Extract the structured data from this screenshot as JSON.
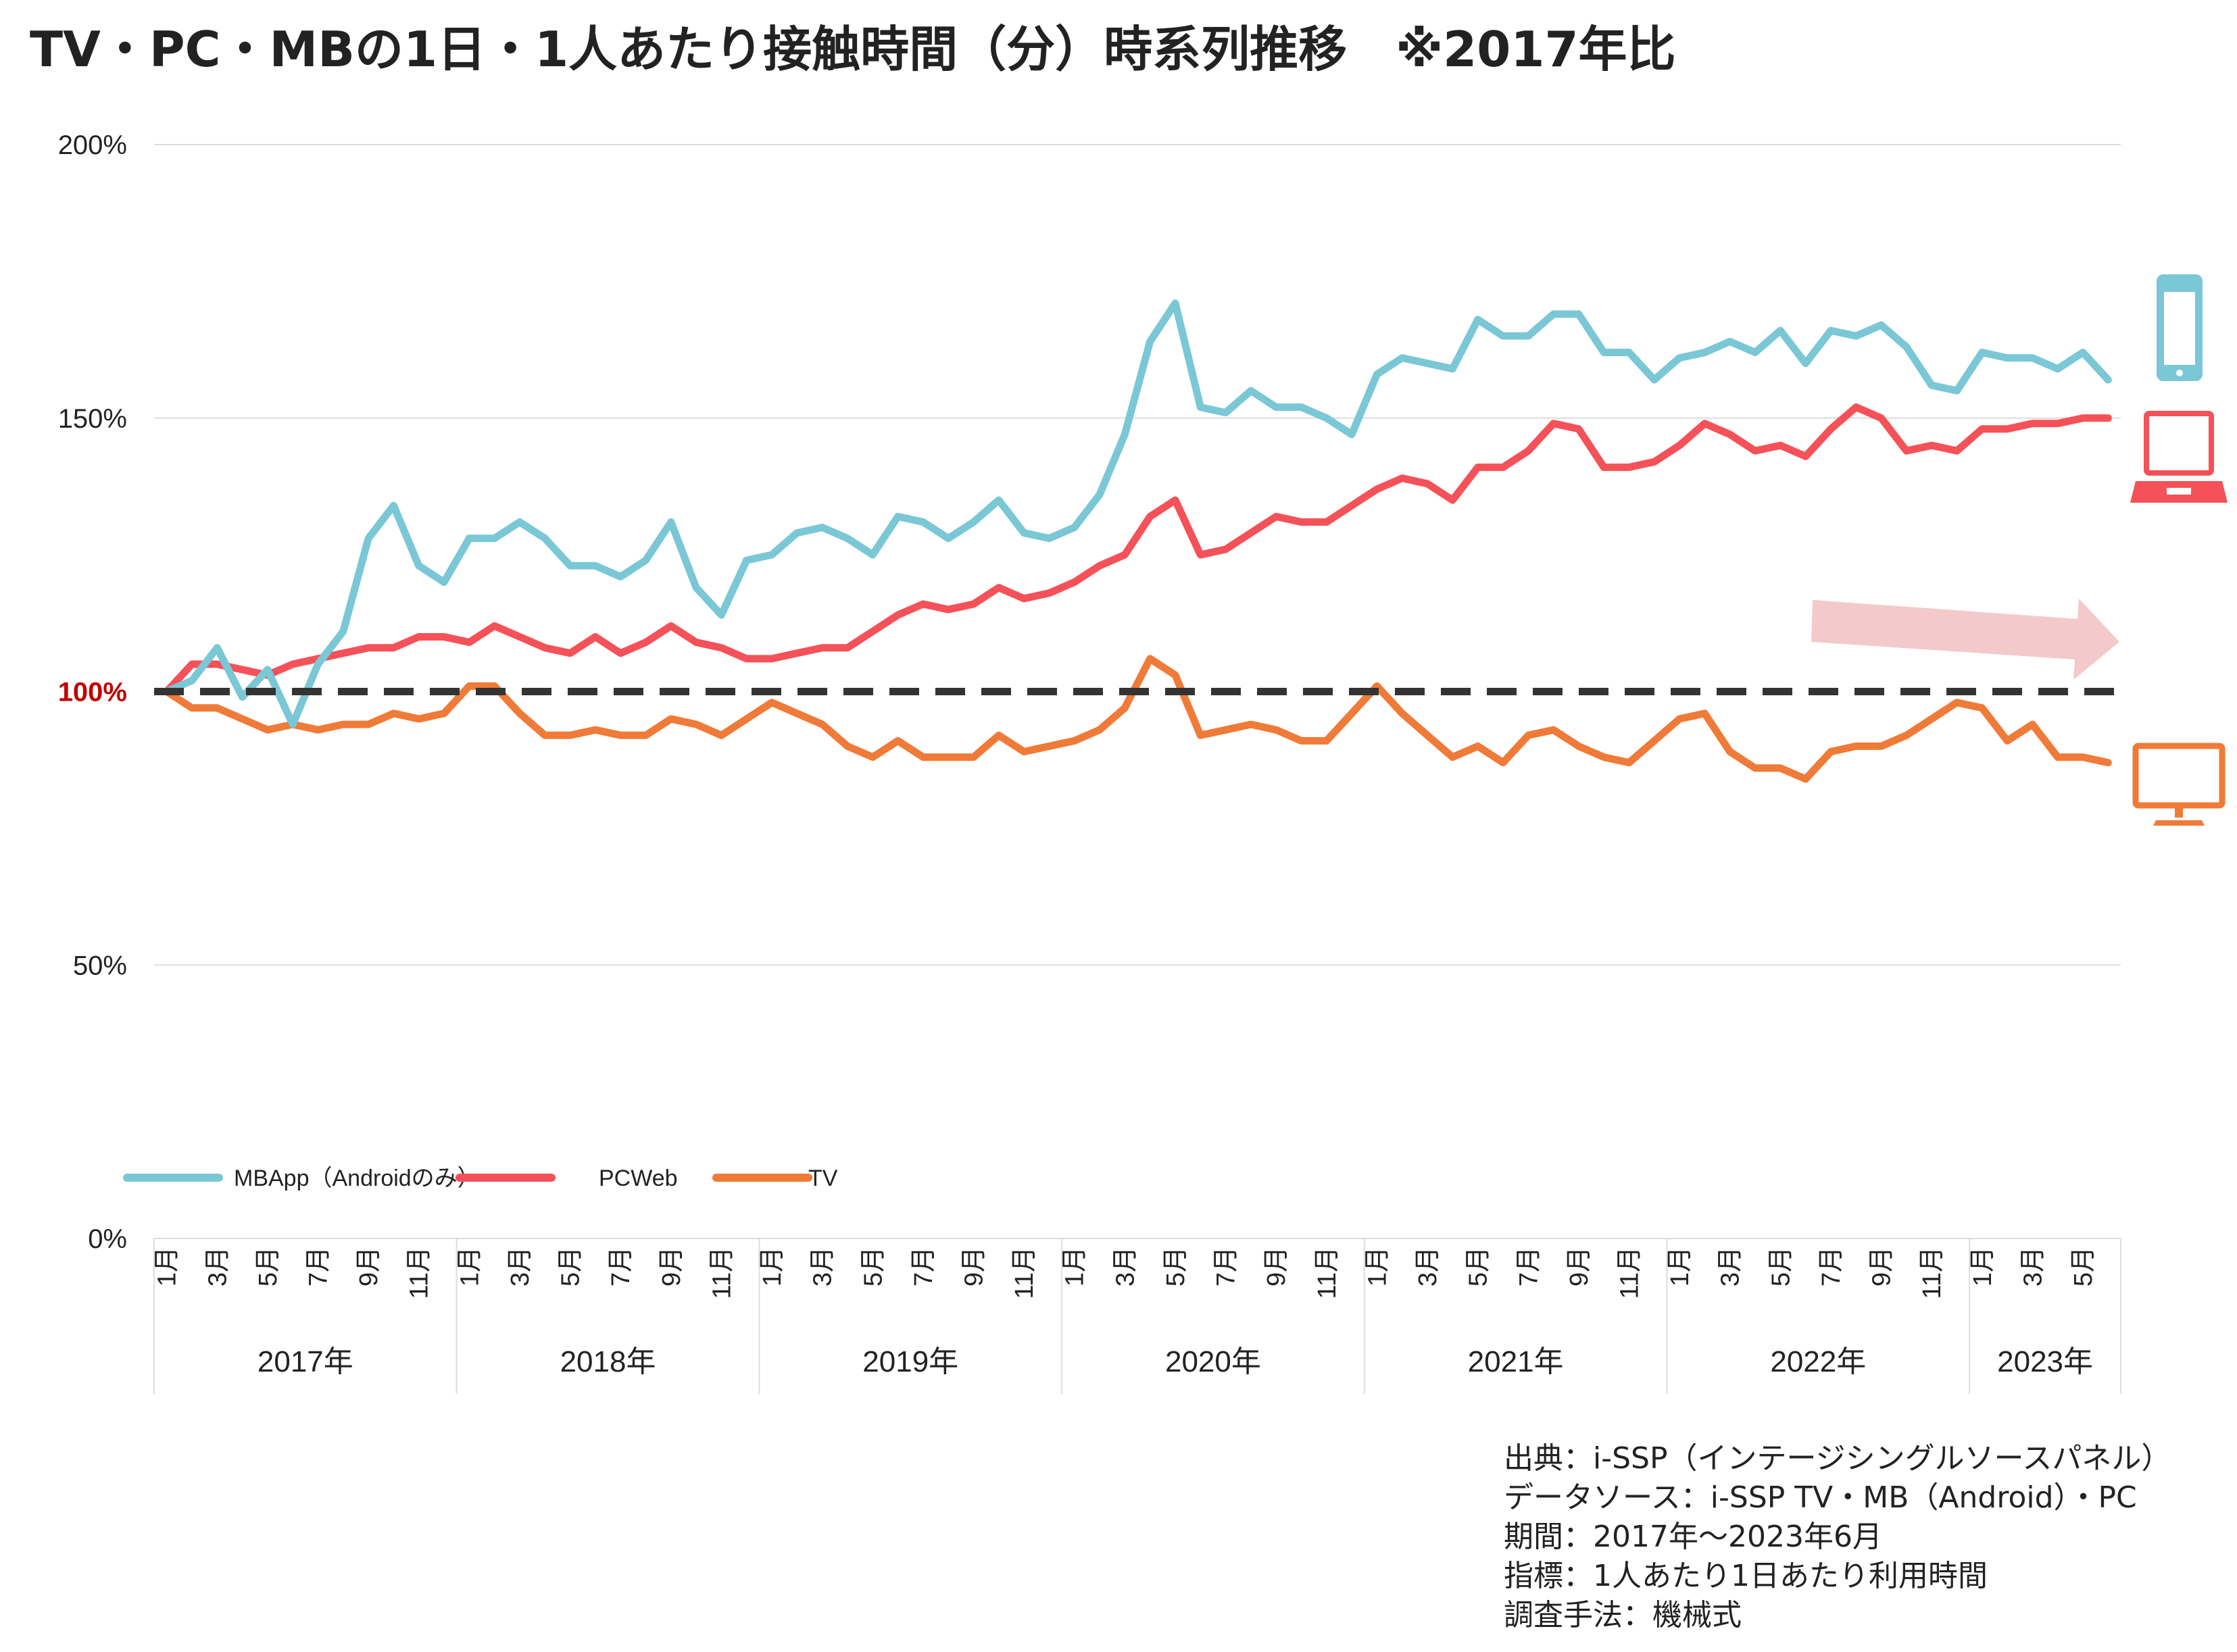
{
  "chart_data": {
    "type": "line",
    "title": "TV・PC・MBの1日・1人あたり接触時間（分）時系列推移　※2017年比",
    "xlabel": "",
    "ylabel": "",
    "ylim": [
      0,
      200
    ],
    "yticks": [
      {
        "value": 0,
        "label": "0%"
      },
      {
        "value": 50,
        "label": "50%"
      },
      {
        "value": 100,
        "label": "100%"
      },
      {
        "value": 150,
        "label": "150%"
      },
      {
        "value": 200,
        "label": "200%"
      }
    ],
    "reference_line": {
      "value": 100,
      "style": "dashed",
      "color": "#333333"
    },
    "grid": true,
    "legend_position": "bottom-left",
    "years": [
      {
        "label": "2017年",
        "months": 12
      },
      {
        "label": "2018年",
        "months": 12
      },
      {
        "label": "2019年",
        "months": 12
      },
      {
        "label": "2020年",
        "months": 12
      },
      {
        "label": "2021年",
        "months": 12
      },
      {
        "label": "2022年",
        "months": 12
      },
      {
        "label": "2023年",
        "months": 6
      }
    ],
    "month_tick_labels": [
      "1月",
      "3月",
      "5月",
      "7月",
      "9月",
      "11月"
    ],
    "series": [
      {
        "name": "MBApp（Androidのみ）",
        "color": "#7ac7d6",
        "values": [
          100,
          102,
          108,
          99,
          104,
          94,
          105,
          111,
          128,
          134,
          123,
          120,
          128,
          128,
          131,
          128,
          123,
          123,
          121,
          124,
          131,
          119,
          114,
          124,
          125,
          129,
          130,
          128,
          125,
          132,
          131,
          128,
          131,
          135,
          129,
          128,
          130,
          136,
          147,
          164,
          171,
          152,
          151,
          155,
          152,
          152,
          150,
          147,
          158,
          161,
          160,
          159,
          168,
          165,
          165,
          169,
          169,
          162,
          162,
          157,
          161,
          162,
          164,
          162,
          166,
          160,
          166,
          165,
          167,
          163,
          156,
          155,
          162,
          161,
          161,
          159,
          162,
          157
        ]
      },
      {
        "name": "PCWeb",
        "color": "#f55158",
        "values": [
          100,
          105,
          105,
          104,
          103,
          105,
          106,
          107,
          108,
          108,
          110,
          110,
          109,
          112,
          110,
          108,
          107,
          110,
          107,
          109,
          112,
          109,
          108,
          106,
          106,
          107,
          108,
          108,
          111,
          114,
          116,
          115,
          116,
          119,
          117,
          118,
          120,
          123,
          125,
          132,
          135,
          125,
          126,
          129,
          132,
          131,
          131,
          134,
          137,
          139,
          138,
          135,
          141,
          141,
          144,
          149,
          148,
          141,
          141,
          142,
          145,
          149,
          147,
          144,
          145,
          143,
          148,
          152,
          150,
          144,
          145,
          144,
          148,
          148,
          149,
          149,
          150,
          150
        ]
      },
      {
        "name": "TV",
        "color": "#f07a38",
        "values": [
          100,
          97,
          97,
          95,
          93,
          94,
          93,
          94,
          94,
          96,
          95,
          96,
          101,
          101,
          96,
          92,
          92,
          93,
          92,
          92,
          95,
          94,
          92,
          95,
          98,
          96,
          94,
          90,
          88,
          91,
          88,
          88,
          88,
          92,
          89,
          90,
          91,
          93,
          97,
          106,
          103,
          92,
          93,
          94,
          93,
          91,
          91,
          96,
          101,
          96,
          92,
          88,
          90,
          87,
          92,
          93,
          90,
          88,
          87,
          91,
          95,
          96,
          89,
          86,
          86,
          84,
          89,
          90,
          90,
          92,
          95,
          98,
          97,
          91,
          94,
          88,
          88,
          87
        ]
      }
    ],
    "annotations": {
      "arrow": "trend-arrow",
      "icons": [
        "smartphone-icon",
        "laptop-icon",
        "monitor-icon"
      ]
    }
  },
  "notes": [
    "出典：i-SSP（インテージシングルソースパネル）",
    "データソース：i-SSP TV・MB（Android）・PC",
    "期間：2017年～2023年6月",
    "指標：1人あたり1日あたり利用時間",
    "調査手法：機械式"
  ]
}
